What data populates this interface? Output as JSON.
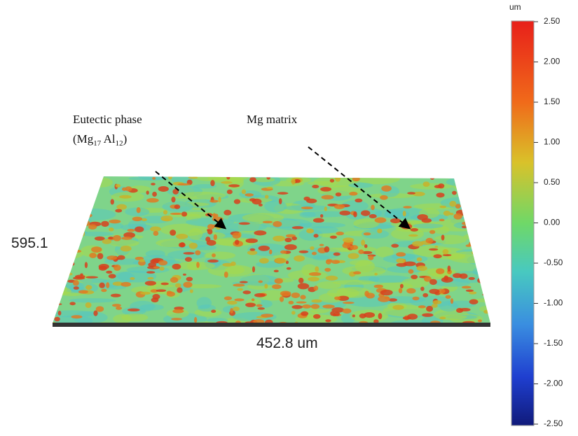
{
  "colorbar": {
    "unit": "um",
    "ticks": [
      "2.50",
      "2.00",
      "1.50",
      "1.00",
      "0.50",
      "0.00",
      "-0.50",
      "-1.00",
      "-1.50",
      "-2.00",
      "-2.50"
    ]
  },
  "annotations": {
    "eutectic": {
      "line1": "Eutectic phase",
      "formula": [
        "(Mg",
        "17",
        " Al",
        "12",
        ")"
      ]
    },
    "matrix": "Mg matrix"
  },
  "axis_labels": {
    "depth": "595.1",
    "width": "452.8 um"
  }
}
